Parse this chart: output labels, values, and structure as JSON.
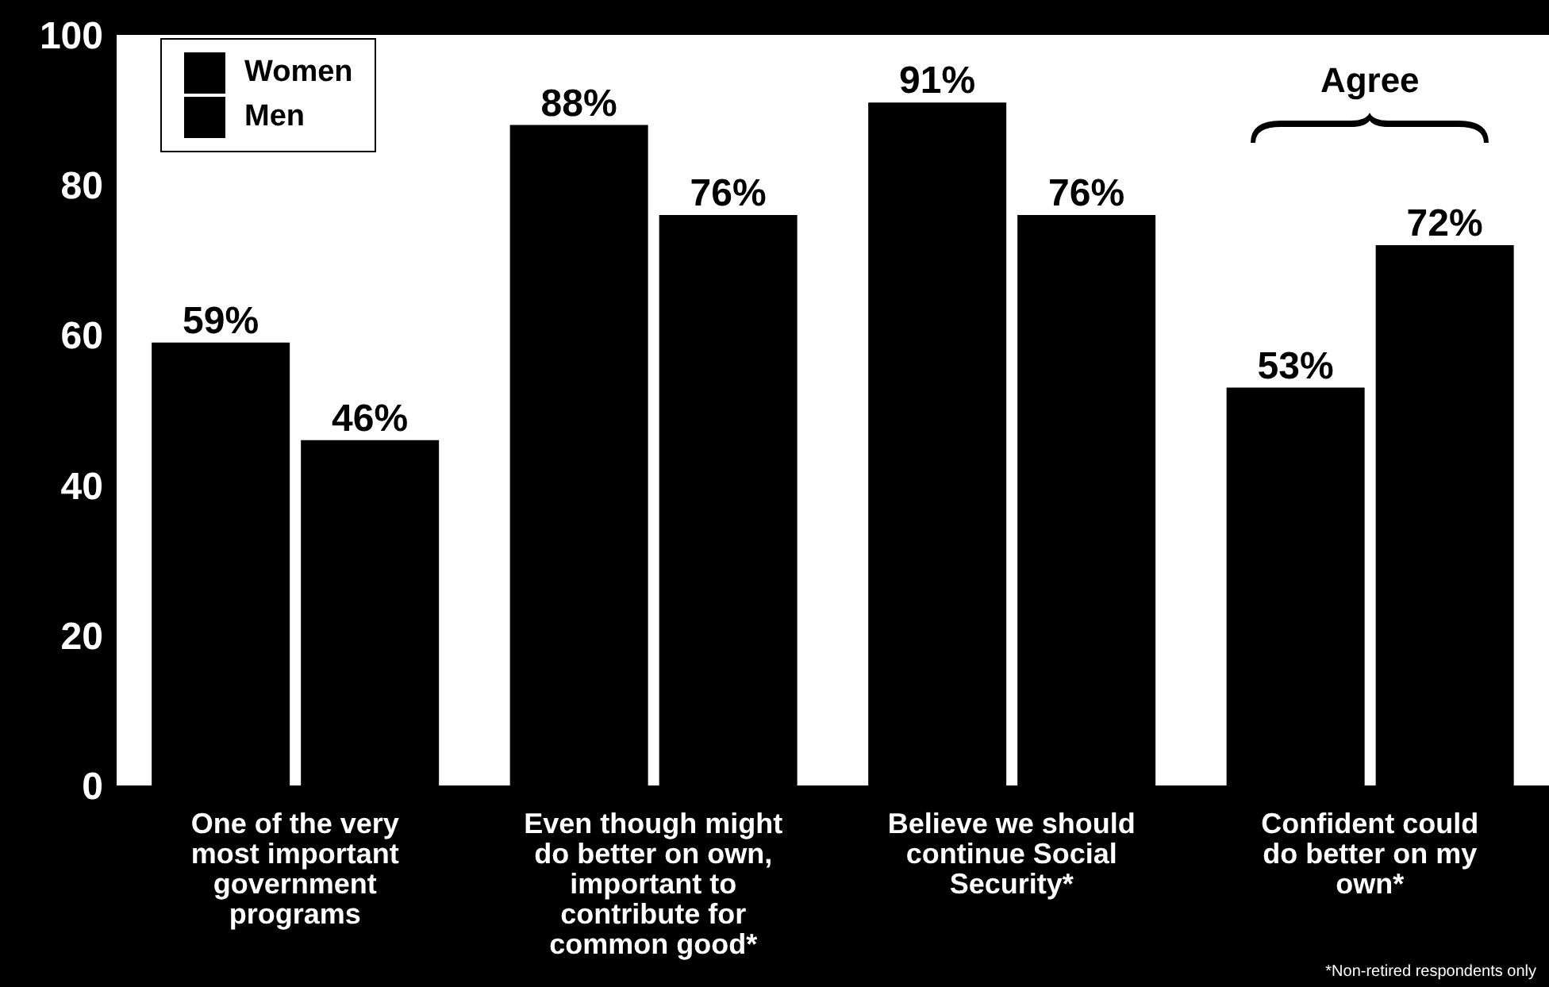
{
  "chart_data": {
    "type": "bar",
    "categories": [
      "One of the very most important government programs",
      "Even though might do better on own, important to contribute for common good*",
      "Believe we should continue Social Security*",
      "Confident could do better on my own*"
    ],
    "series": [
      {
        "name": "Women",
        "color": "#000000",
        "values": [
          59,
          88,
          91,
          53
        ],
        "value_labels": [
          "59%",
          "88%",
          "91%",
          "53%"
        ]
      },
      {
        "name": "Men",
        "color": "#000000",
        "values": [
          46,
          76,
          76,
          72
        ],
        "value_labels": [
          "46%",
          "76%",
          "76%",
          "72%"
        ]
      }
    ],
    "ylim": [
      0,
      100
    ],
    "yticks": [
      0,
      20,
      40,
      60,
      80,
      100
    ],
    "legend": "top left",
    "annotations": [
      "Agree",
      "*Non-retired respondents only"
    ]
  }
}
